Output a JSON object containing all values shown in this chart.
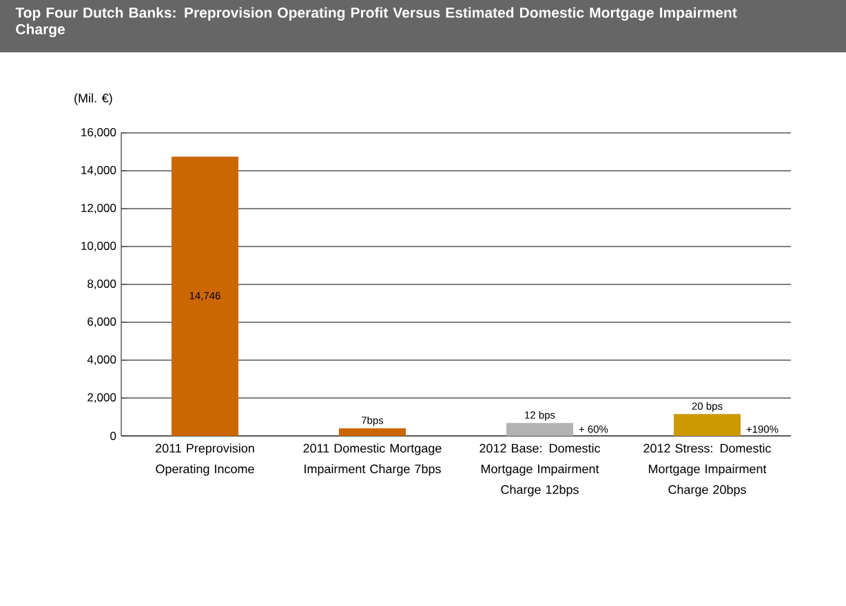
{
  "chart_data": {
    "type": "bar",
    "title": "Top Four Dutch Banks: Preprovision Operating Profit Versus Estimated Domestic Mortgage Impairment Charge",
    "ylabel": "(Mil. €)",
    "categories": [
      "2011 Preprovision Operating Income",
      "2011 Domestic Mortgage Impairment Charge 7bps",
      "2012 Base: Domestic Mortgage Impairment Charge 12bps",
      "2012 Stress: Domestic Mortgage Impairment Charge 20bps"
    ],
    "values": [
      14746,
      400,
      680,
      1150
    ],
    "colors": [
      "#cc6600",
      "#cc6600",
      "#b2b2b2",
      "#cc9900"
    ],
    "value_labels": [
      "14,746",
      null,
      null,
      null
    ],
    "annotations": [
      {
        "text": "7bps",
        "x": "2011 Domestic Mortgage Impairment Charge 7bps",
        "y": 400
      },
      {
        "text": "12 bps",
        "x": "2012 Base: Domestic Mortgage Impairment Charge 12bps",
        "y": 680
      },
      {
        "text": "20 bps",
        "x": "2012 Stress: Domestic Mortgage Impairment Charge 20bps",
        "y": 1150
      },
      "+ 60%",
      "+190%"
    ],
    "ylim": [
      0,
      16000
    ],
    "yticks": [
      {
        "value": 0,
        "label": "0"
      },
      {
        "value": 2000,
        "label": "2,000"
      },
      {
        "value": 4000,
        "label": "4,000"
      },
      {
        "value": 6000,
        "label": "6,000"
      },
      {
        "value": 8000,
        "label": "8,000"
      },
      {
        "value": 10000,
        "label": "10,000"
      },
      {
        "value": 12000,
        "label": "12,000"
      },
      {
        "value": 14000,
        "label": "14,000"
      },
      {
        "value": 16000,
        "label": "16,000"
      }
    ],
    "grid": "y"
  }
}
